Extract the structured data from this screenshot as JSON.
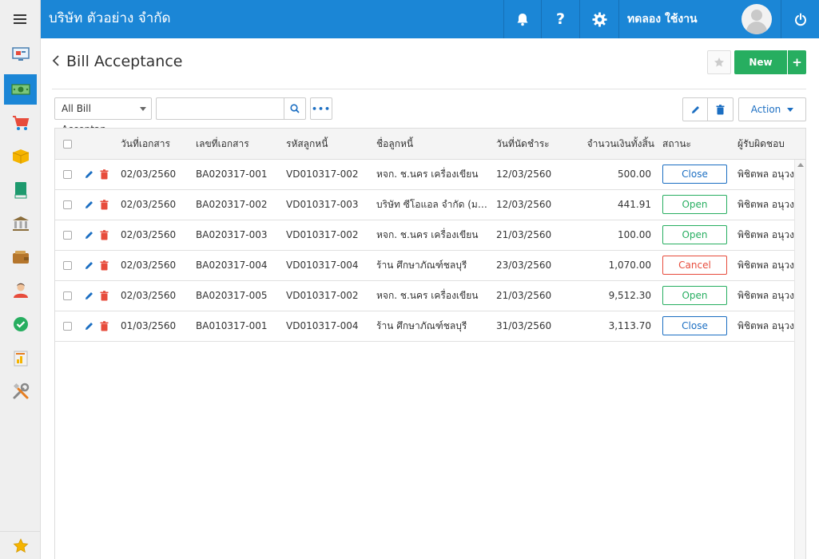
{
  "header": {
    "company": "บริษัท ตัวอย่าง จำกัด",
    "user_name": "ทดลอง ใช้งาน",
    "help_label": "?"
  },
  "page": {
    "title": "Bill Acceptance",
    "new_label": "New",
    "plus_label": "+"
  },
  "filter": {
    "selected": "All Bill Acceptan...",
    "search_value": "",
    "more_label": "•••",
    "action_label": "Action"
  },
  "colors": {
    "primary": "#1b86d6",
    "green": "#27ae60",
    "close_status": "#1b6ec2",
    "open_status": "#27ae60",
    "cancel_status": "#e74c3c"
  },
  "table": {
    "headers": {
      "doc_date": "วันที่เอกสาร",
      "doc_no": "เลขที่เอกสาร",
      "debtor_code": "รหัสลูกหนี้",
      "debtor_name": "ชื่อลูกหนี้",
      "due_date": "วันที่นัดชำระ",
      "total": "จำนวนเงินทั้งสิ้น",
      "status": "สถานะ",
      "responsible": "ผู้รับผิดชอบ"
    },
    "rows": [
      {
        "doc_date": "02/03/2560",
        "doc_no": "BA020317-001",
        "debtor_code": "VD010317-002",
        "debtor_name": "หจก. ช.นคร เครื่องเขียน",
        "due_date": "12/03/2560",
        "total": "500.00",
        "status": "Close",
        "status_type": "close",
        "responsible": "พิชิตพล อนุวงษ์"
      },
      {
        "doc_date": "02/03/2560",
        "doc_no": "BA020317-002",
        "debtor_code": "VD010317-003",
        "debtor_name": "บริษัท ซีโอแอล จำกัด (มหาชน)",
        "due_date": "12/03/2560",
        "total": "441.91",
        "status": "Open",
        "status_type": "open",
        "responsible": "พิชิตพล อนุวงษ์"
      },
      {
        "doc_date": "02/03/2560",
        "doc_no": "BA020317-003",
        "debtor_code": "VD010317-002",
        "debtor_name": "หจก. ช.นคร เครื่องเขียน",
        "due_date": "21/03/2560",
        "total": "100.00",
        "status": "Open",
        "status_type": "open",
        "responsible": "พิชิตพล อนุวงษ์"
      },
      {
        "doc_date": "02/03/2560",
        "doc_no": "BA020317-004",
        "debtor_code": "VD010317-004",
        "debtor_name": "ร้าน ศึกษาภัณฑ์ชลบุรี",
        "due_date": "23/03/2560",
        "total": "1,070.00",
        "status": "Cancel",
        "status_type": "cancel",
        "responsible": "พิชิตพล อนุวงษ์"
      },
      {
        "doc_date": "02/03/2560",
        "doc_no": "BA020317-005",
        "debtor_code": "VD010317-002",
        "debtor_name": "หจก. ช.นคร เครื่องเขียน",
        "due_date": "21/03/2560",
        "total": "9,512.30",
        "status": "Open",
        "status_type": "open",
        "responsible": "พิชิตพล อนุวงษ์"
      },
      {
        "doc_date": "01/03/2560",
        "doc_no": "BA010317-001",
        "debtor_code": "VD010317-004",
        "debtor_name": "ร้าน ศึกษาภัณฑ์ชลบุรี",
        "due_date": "31/03/2560",
        "total": "3,113.70",
        "status": "Close",
        "status_type": "close",
        "responsible": "พิชิตพล อนุวงษ์"
      }
    ]
  },
  "sidebar": {
    "items": [
      "dashboard-icon",
      "money-icon",
      "cart-icon",
      "box-icon",
      "book-icon",
      "bank-icon",
      "wallet-icon",
      "people-icon",
      "check-icon",
      "report-icon",
      "tools-icon"
    ],
    "active_index": 1
  }
}
